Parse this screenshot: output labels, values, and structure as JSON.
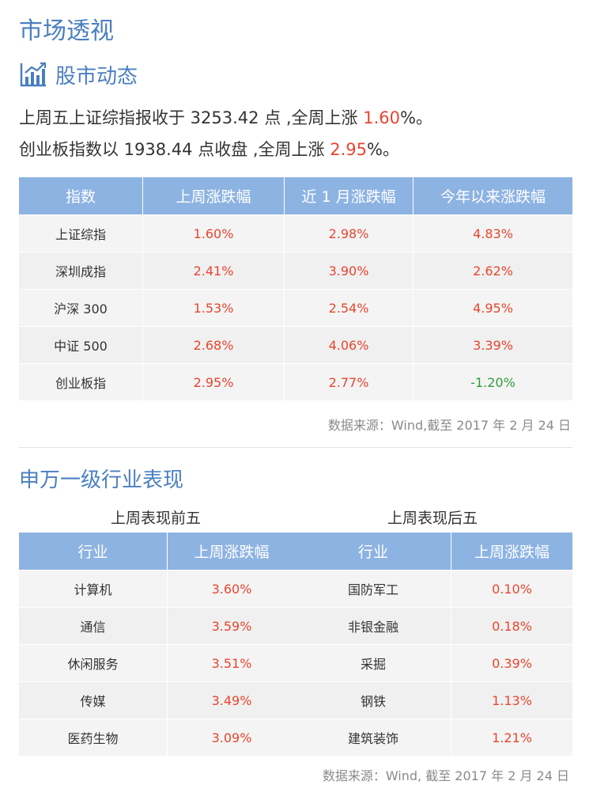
{
  "page_title": "市场透视",
  "section1": {
    "icon": "bar-chart-icon",
    "title": "股市动态",
    "line1": {
      "prefix": "上周五上证综指报收于 3253.42 点 ,全周上涨 ",
      "highlight": "1.60",
      "suffix": "%。"
    },
    "line2": {
      "prefix": "创业板指数以 1938.44 点收盘 ,全周上涨 ",
      "highlight": "2.95",
      "suffix": "%。"
    }
  },
  "market_table": {
    "headers": [
      "指数",
      "上周涨跌幅",
      "近 1 月涨跌幅",
      "今年以来涨跌幅"
    ],
    "rows": [
      {
        "name": "上证综指",
        "week": "1.60%",
        "month": "2.98%",
        "ytd": "4.83%"
      },
      {
        "name": "深圳成指",
        "week": "2.41%",
        "month": "3.90%",
        "ytd": "2.62%"
      },
      {
        "name": "沪深 300",
        "week": "1.53%",
        "month": "2.54%",
        "ytd": "4.95%"
      },
      {
        "name": "中证 500",
        "week": "2.68%",
        "month": "4.06%",
        "ytd": "3.39%"
      },
      {
        "name": "创业板指",
        "week": "2.95%",
        "month": "2.77%",
        "ytd": "-1.20%"
      }
    ],
    "source": "数据来源：Wind,截至 2017 年 2 月 24 日"
  },
  "section2": {
    "title": "申万一级行业表现",
    "top5": {
      "caption": "上周表现前五",
      "headers": [
        "行业",
        "上周涨跌幅"
      ],
      "rows": [
        {
          "name": "计算机",
          "value": "3.60%"
        },
        {
          "name": "通信",
          "value": "3.59%"
        },
        {
          "name": "休闲服务",
          "value": "3.51%"
        },
        {
          "name": "传媒",
          "value": "3.49%"
        },
        {
          "name": "医药生物",
          "value": "3.09%"
        }
      ]
    },
    "bottom5": {
      "caption": "上周表现后五",
      "headers": [
        "行业",
        "上周涨跌幅"
      ],
      "rows": [
        {
          "name": "国防军工",
          "value": "0.10%"
        },
        {
          "name": "非银金融",
          "value": "0.18%"
        },
        {
          "name": "采掘",
          "value": "0.39%"
        },
        {
          "name": "钢铁",
          "value": "1.13%"
        },
        {
          "name": "建筑装饰",
          "value": "1.21%"
        }
      ]
    },
    "source": "数据来源：Wind, 截至 2017 年 2 月 24 日"
  },
  "colors": {
    "accent": "#4a7fc1",
    "header_bg": "#8db3e2",
    "up": "#e8452e",
    "down": "#2e9d3c"
  }
}
